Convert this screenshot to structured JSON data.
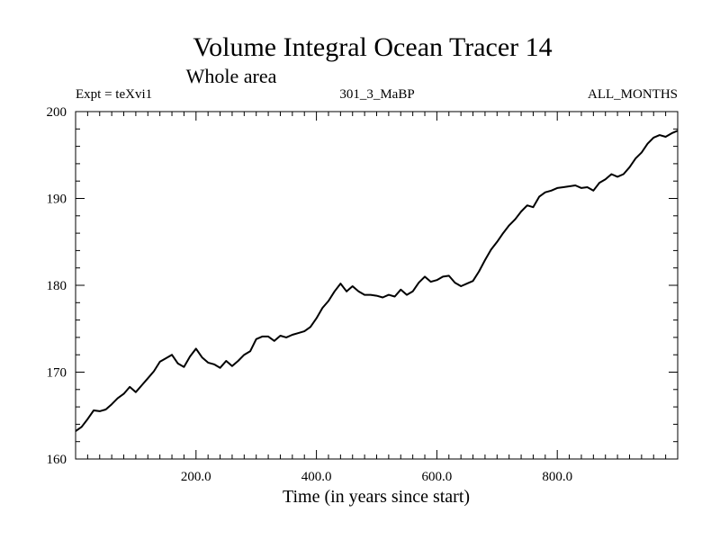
{
  "chart_data": {
    "type": "line",
    "title": "Volume Integral Ocean Tracer 14",
    "subtitle": "Whole area",
    "left_note": "Expt = teXvi1",
    "center_note": "301_3_MaBP",
    "right_note": "ALL_MONTHS",
    "xlabel": "Time (in years since start)",
    "ylabel": "",
    "xlim": [
      0,
      1000
    ],
    "ylim": [
      160,
      200
    ],
    "x_ticks": [
      200,
      400,
      600,
      800
    ],
    "x_tick_labels": [
      "200.0",
      "400.0",
      "600.0",
      "800.0"
    ],
    "y_ticks": [
      160,
      170,
      180,
      190,
      200
    ],
    "y_tick_labels": [
      "160",
      "170",
      "180",
      "190",
      "200"
    ],
    "grid": false,
    "series": [
      {
        "name": "Volume Integral Ocean Tracer 14",
        "x": [
          0,
          10,
          20,
          30,
          40,
          50,
          60,
          70,
          80,
          90,
          100,
          110,
          120,
          130,
          140,
          150,
          160,
          170,
          180,
          190,
          200,
          210,
          220,
          230,
          240,
          250,
          260,
          270,
          280,
          290,
          300,
          310,
          320,
          330,
          340,
          350,
          360,
          370,
          380,
          390,
          400,
          410,
          420,
          430,
          440,
          450,
          460,
          470,
          480,
          490,
          500,
          510,
          520,
          530,
          540,
          550,
          560,
          570,
          580,
          590,
          600,
          610,
          620,
          630,
          640,
          650,
          660,
          670,
          680,
          690,
          700,
          710,
          720,
          730,
          740,
          750,
          760,
          770,
          780,
          790,
          800,
          810,
          820,
          830,
          840,
          850,
          860,
          870,
          880,
          890,
          900,
          910,
          920,
          930,
          940,
          950,
          960,
          970,
          980,
          990,
          1000
        ],
        "values": [
          163.2,
          163.7,
          164.6,
          165.6,
          165.5,
          165.7,
          166.3,
          167.0,
          167.5,
          168.3,
          167.7,
          168.5,
          169.3,
          170.1,
          171.2,
          171.6,
          172.0,
          171.0,
          170.6,
          171.8,
          172.7,
          171.7,
          171.1,
          170.9,
          170.5,
          171.3,
          170.7,
          171.3,
          172.0,
          172.4,
          173.8,
          174.1,
          174.1,
          173.6,
          174.2,
          174.0,
          174.3,
          174.5,
          174.7,
          175.2,
          176.2,
          177.4,
          178.2,
          179.3,
          180.2,
          179.3,
          179.9,
          179.3,
          178.9,
          178.9,
          178.8,
          178.6,
          178.9,
          178.7,
          179.5,
          178.9,
          179.3,
          180.3,
          181.0,
          180.4,
          180.6,
          181.0,
          181.1,
          180.3,
          179.9,
          180.2,
          180.5,
          181.6,
          182.9,
          184.1,
          185.0,
          186.0,
          186.9,
          187.6,
          188.5,
          189.2,
          189.0,
          190.2,
          190.7,
          190.9,
          191.2,
          191.3,
          191.4,
          191.5,
          191.2,
          191.3,
          190.9,
          191.8,
          192.2,
          192.8,
          192.5,
          192.8,
          193.6,
          194.6,
          195.3,
          196.3,
          197.0,
          197.3,
          197.1,
          197.5,
          197.8
        ]
      }
    ]
  }
}
